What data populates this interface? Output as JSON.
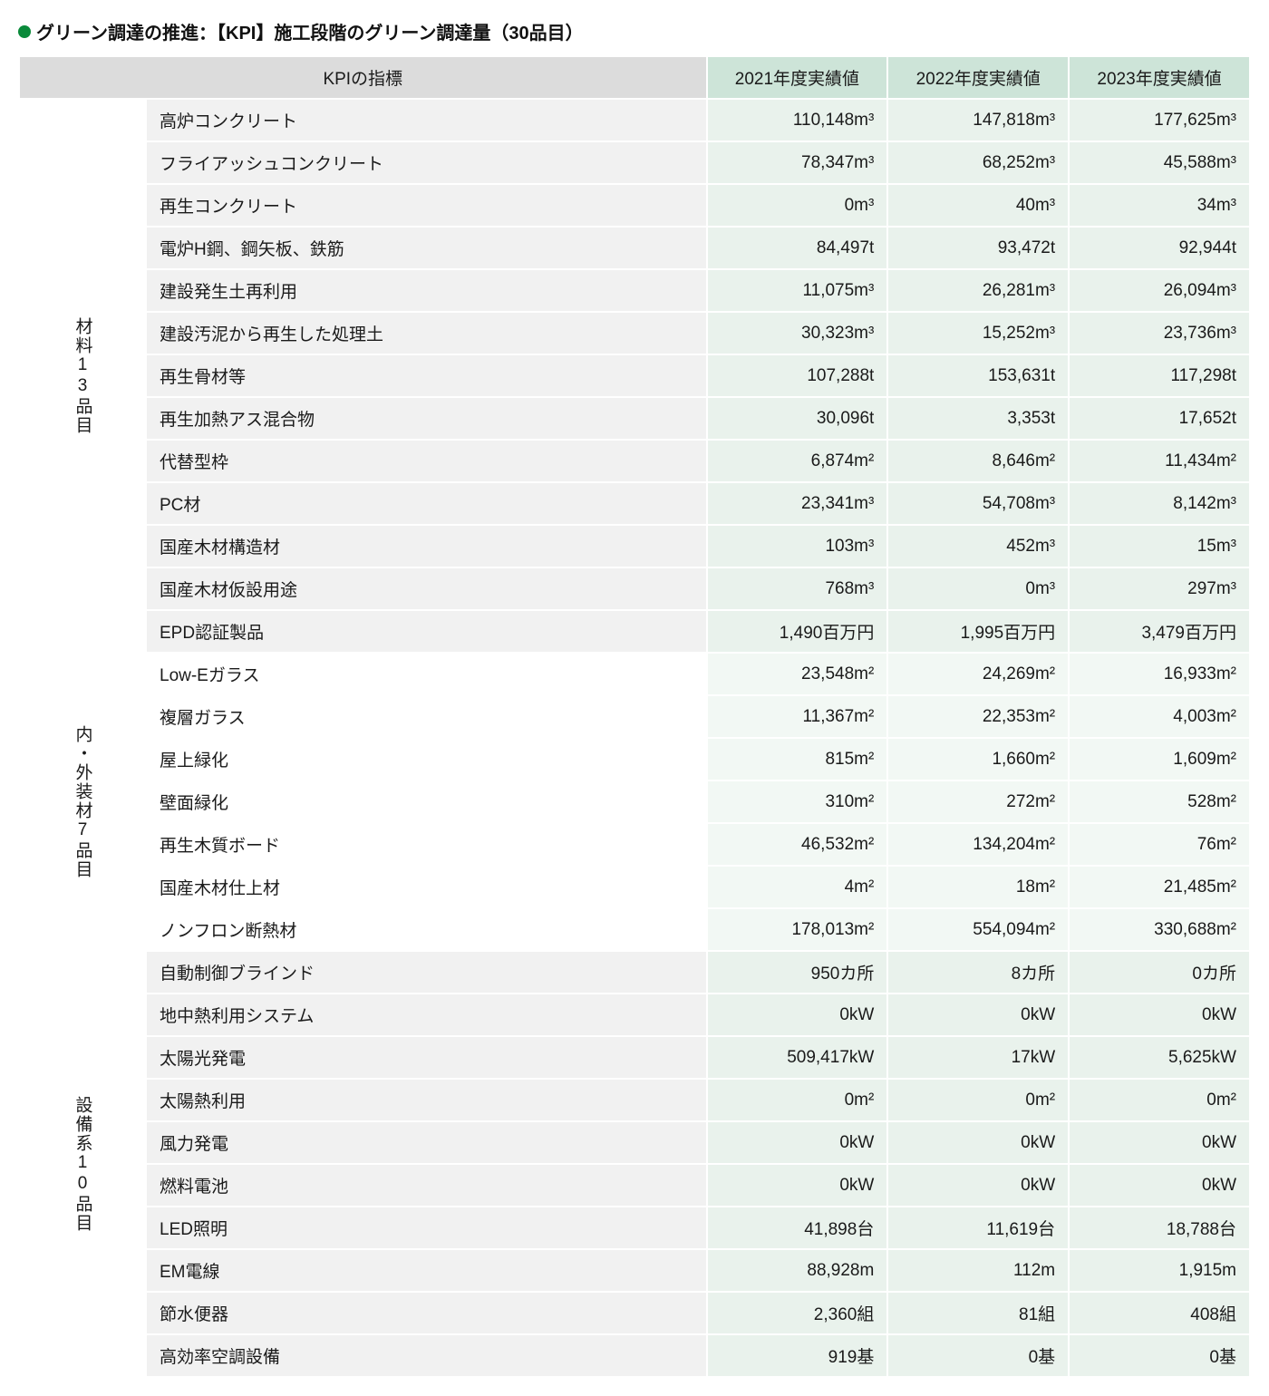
{
  "title": "グリーン調達の推進：【KPI】施工段階のグリーン調達量（30品目）",
  "header": {
    "kpi": "KPIの指標",
    "y1": "2021年度実績値",
    "y2": "2022年度実績値",
    "y3": "2023年度実績値"
  },
  "colors": {
    "bullet": "#0a8a3a",
    "header_bg": "#dcdcdc",
    "year_bg": "#cde4d8",
    "item_bg_a": "#f1f1f1",
    "val_bg_a": "#e9f2ec",
    "item_bg_b": "#ffffff",
    "val_bg_b": "#f2f8f4"
  },
  "groups": [
    {
      "label": "材料13品目",
      "alt": false,
      "rows": [
        {
          "item": "高炉コンクリート",
          "y1": "110,148m³",
          "y2": "147,818m³",
          "y3": "177,625m³"
        },
        {
          "item": "フライアッシュコンクリート",
          "y1": "78,347m³",
          "y2": "68,252m³",
          "y3": "45,588m³"
        },
        {
          "item": "再生コンクリート",
          "y1": "0m³",
          "y2": "40m³",
          "y3": "34m³"
        },
        {
          "item": "電炉H鋼、鋼矢板、鉄筋",
          "y1": "84,497t",
          "y2": "93,472t",
          "y3": "92,944t"
        },
        {
          "item": "建設発生土再利用",
          "y1": "11,075m³",
          "y2": "26,281m³",
          "y3": "26,094m³"
        },
        {
          "item": "建設汚泥から再生した処理土",
          "y1": "30,323m³",
          "y2": "15,252m³",
          "y3": "23,736m³"
        },
        {
          "item": "再生骨材等",
          "y1": "107,288t",
          "y2": "153,631t",
          "y3": "117,298t"
        },
        {
          "item": "再生加熱アス混合物",
          "y1": "30,096t",
          "y2": "3,353t",
          "y3": "17,652t"
        },
        {
          "item": "代替型枠",
          "y1": "6,874m²",
          "y2": "8,646m²",
          "y3": "11,434m²"
        },
        {
          "item": "PC材",
          "y1": "23,341m³",
          "y2": "54,708m³",
          "y3": "8,142m³"
        },
        {
          "item": "国産木材構造材",
          "y1": "103m³",
          "y2": "452m³",
          "y3": "15m³"
        },
        {
          "item": "国産木材仮設用途",
          "y1": "768m³",
          "y2": "0m³",
          "y3": "297m³"
        },
        {
          "item": "EPD認証製品",
          "y1": "1,490百万円",
          "y2": "1,995百万円",
          "y3": "3,479百万円"
        }
      ]
    },
    {
      "label": "内・外装材7品目",
      "alt": true,
      "rows": [
        {
          "item": "Low-Eガラス",
          "y1": "23,548m²",
          "y2": "24,269m²",
          "y3": "16,933m²"
        },
        {
          "item": "複層ガラス",
          "y1": "11,367m²",
          "y2": "22,353m²",
          "y3": "4,003m²"
        },
        {
          "item": "屋上緑化",
          "y1": "815m²",
          "y2": "1,660m²",
          "y3": "1,609m²"
        },
        {
          "item": "壁面緑化",
          "y1": "310m²",
          "y2": "272m²",
          "y3": "528m²"
        },
        {
          "item": "再生木質ボード",
          "y1": "46,532m²",
          "y2": "134,204m²",
          "y3": "76m²"
        },
        {
          "item": "国産木材仕上材",
          "y1": "4m²",
          "y2": "18m²",
          "y3": "21,485m²"
        },
        {
          "item": "ノンフロン断熱材",
          "y1": "178,013m²",
          "y2": "554,094m²",
          "y3": "330,688m²"
        }
      ]
    },
    {
      "label": "設備系10品目",
      "alt": false,
      "rows": [
        {
          "item": "自動制御ブラインド",
          "y1": "950カ所",
          "y2": "8カ所",
          "y3": "0カ所"
        },
        {
          "item": "地中熱利用システム",
          "y1": "0kW",
          "y2": "0kW",
          "y3": "0kW"
        },
        {
          "item": "太陽光発電",
          "y1": "509,417kW",
          "y2": "17kW",
          "y3": "5,625kW"
        },
        {
          "item": "太陽熱利用",
          "y1": "0m²",
          "y2": "0m²",
          "y3": "0m²"
        },
        {
          "item": "風力発電",
          "y1": "0kW",
          "y2": "0kW",
          "y3": "0kW"
        },
        {
          "item": "燃料電池",
          "y1": "0kW",
          "y2": "0kW",
          "y3": "0kW"
        },
        {
          "item": "LED照明",
          "y1": "41,898台",
          "y2": "11,619台",
          "y3": "18,788台"
        },
        {
          "item": "EM電線",
          "y1": "88,928m",
          "y2": "112m",
          "y3": "1,915m"
        },
        {
          "item": "節水便器",
          "y1": "2,360組",
          "y2": "81組",
          "y3": "408組"
        },
        {
          "item": "高効率空調設備",
          "y1": "919基",
          "y2": "0基",
          "y3": "0基"
        }
      ]
    }
  ]
}
